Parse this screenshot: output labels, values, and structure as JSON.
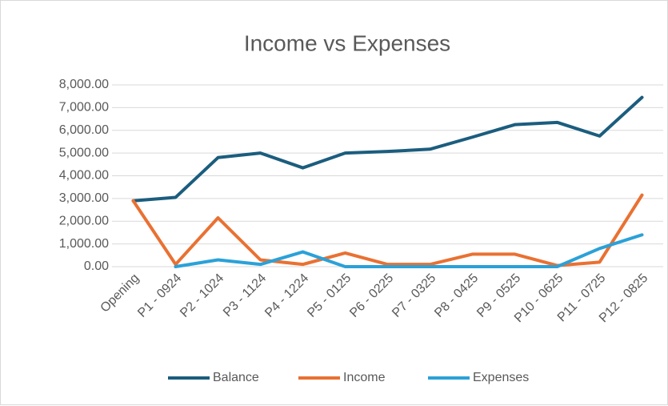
{
  "chart_data": {
    "type": "line",
    "title": "Income vs Expenses",
    "categories": [
      "Opening",
      "P1 - 0924",
      "P2 - 1024",
      "P3 - 1124",
      "P4 - 1224",
      "P5 - 0125",
      "P6 - 0225",
      "P7 - 0325",
      "P8 - 0425",
      "P9 - 0525",
      "P10 - 0625",
      "P11 - 0725",
      "P12 - 0825"
    ],
    "series": [
      {
        "name": "Balance",
        "color": "#1b5d7e",
        "values": [
          2900,
          3050,
          4800,
          5000,
          4350,
          5000,
          5070,
          5170,
          5700,
          6250,
          6350,
          5750,
          7450
        ]
      },
      {
        "name": "Income",
        "color": "#e97132",
        "values": [
          2900,
          100,
          2150,
          300,
          100,
          600,
          100,
          100,
          550,
          550,
          50,
          200,
          3150
        ]
      },
      {
        "name": "Expenses",
        "color": "#2ba1d8",
        "values": [
          null,
          0,
          300,
          100,
          650,
          0,
          0,
          0,
          0,
          0,
          0,
          800,
          1400
        ]
      }
    ],
    "ylim": [
      0,
      8000
    ],
    "yticks": [
      {
        "value": 0,
        "label": "0.00"
      },
      {
        "value": 1000,
        "label": "1,000.00"
      },
      {
        "value": 2000,
        "label": "2,000.00"
      },
      {
        "value": 3000,
        "label": "3,000.00"
      },
      {
        "value": 4000,
        "label": "4,000.00"
      },
      {
        "value": 5000,
        "label": "5,000.00"
      },
      {
        "value": 6000,
        "label": "6,000.00"
      },
      {
        "value": 7000,
        "label": "7,000.00"
      },
      {
        "value": 8000,
        "label": "8,000.00"
      }
    ],
    "grid": true,
    "legend": "bottom"
  }
}
